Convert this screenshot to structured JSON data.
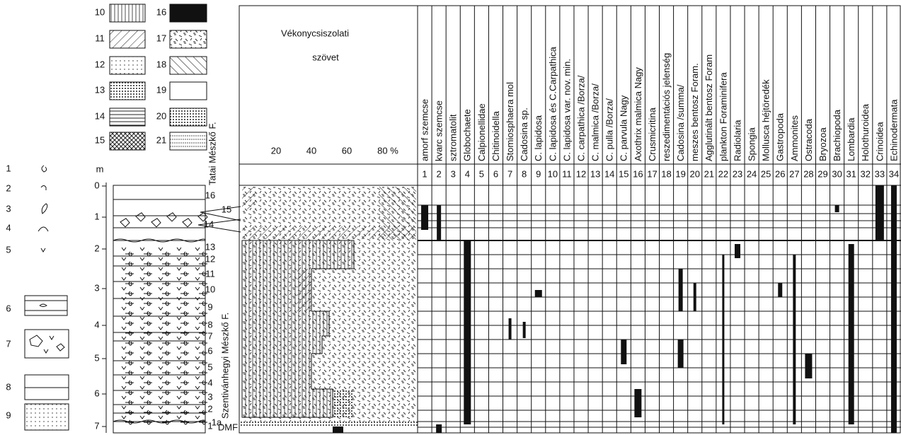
{
  "symbol_legend": [
    "1",
    "2",
    "3",
    "4",
    "5",
    "6",
    "7",
    "8",
    "9"
  ],
  "pattern_legend": [
    "10",
    "11",
    "12",
    "13",
    "14",
    "15",
    "16",
    "17",
    "18",
    "19",
    "20",
    "21"
  ],
  "depth_axis": {
    "unit": "m",
    "ticks": [
      "0",
      "1",
      "2",
      "3",
      "4",
      "5",
      "6",
      "7"
    ]
  },
  "formations": [
    "Tatai Mészkő F.",
    "Szentivánhegyi Mészkő F."
  ],
  "beds": [
    "16",
    "15",
    "14",
    "13",
    "12",
    "11",
    "10",
    "9",
    "8",
    "7",
    "6",
    "5",
    "4",
    "3",
    "2",
    "1",
    "1a",
    "DMF"
  ],
  "microfacies": {
    "title_line1": "Vékonycsiszolati",
    "title_line2": "szövet",
    "percent_ticks": [
      "20",
      "40",
      "60",
      "80 %"
    ]
  },
  "columns": [
    {
      "number": "1",
      "name": "amorf szemcse"
    },
    {
      "number": "2",
      "name": "kvarc szemcse"
    },
    {
      "number": "3",
      "name": "sztromatolit"
    },
    {
      "number": "4",
      "name": "Globochaete"
    },
    {
      "number": "5",
      "name": "Calpionellidae"
    },
    {
      "number": "6",
      "name": "Chitinoidella"
    },
    {
      "number": "7",
      "name": "Stomiosphaera mol"
    },
    {
      "number": "8",
      "name": "Cadosina sp."
    },
    {
      "number": "9",
      "name": "C. lapidosa"
    },
    {
      "number": "10",
      "name": "C. lapidosa és C.Carpathica"
    },
    {
      "number": "11",
      "name": "C. lapidosa var. nov. min."
    },
    {
      "number": "12",
      "name": "C. carpathica /Borza/"
    },
    {
      "number": "13",
      "name": "C. malmica /Borza/"
    },
    {
      "number": "14",
      "name": "C. pulla /Borza/"
    },
    {
      "number": "15",
      "name": "C. parvula Nagy"
    },
    {
      "number": "16",
      "name": "Axothrix malmica Nagy"
    },
    {
      "number": "17",
      "name": "Crusmicritina"
    },
    {
      "number": "18",
      "name": "reszedimentációs jelenség"
    },
    {
      "number": "19",
      "name": "Cadosina /summa/"
    },
    {
      "number": "20",
      "name": "meszes bentosz Foram."
    },
    {
      "number": "21",
      "name": "Agglutinált bentosz Foram"
    },
    {
      "number": "22",
      "name": "plankton Foraminifera"
    },
    {
      "number": "23",
      "name": "Radiolaria"
    },
    {
      "number": "24",
      "name": "Spongia"
    },
    {
      "number": "25",
      "name": "Mollusca héjtöredék"
    },
    {
      "number": "26",
      "name": "Gastropoda"
    },
    {
      "number": "27",
      "name": "Ammonites"
    },
    {
      "number": "28",
      "name": "Ostracoda"
    },
    {
      "number": "29",
      "name": "Bryozoa"
    },
    {
      "number": "30",
      "name": "Brachiopoda"
    },
    {
      "number": "31",
      "name": "Lombardia"
    },
    {
      "number": "32",
      "name": "Holothuroidea"
    },
    {
      "number": "33",
      "name": "Crinoidea"
    },
    {
      "number": "34",
      "name": "Echinodermata"
    }
  ]
}
